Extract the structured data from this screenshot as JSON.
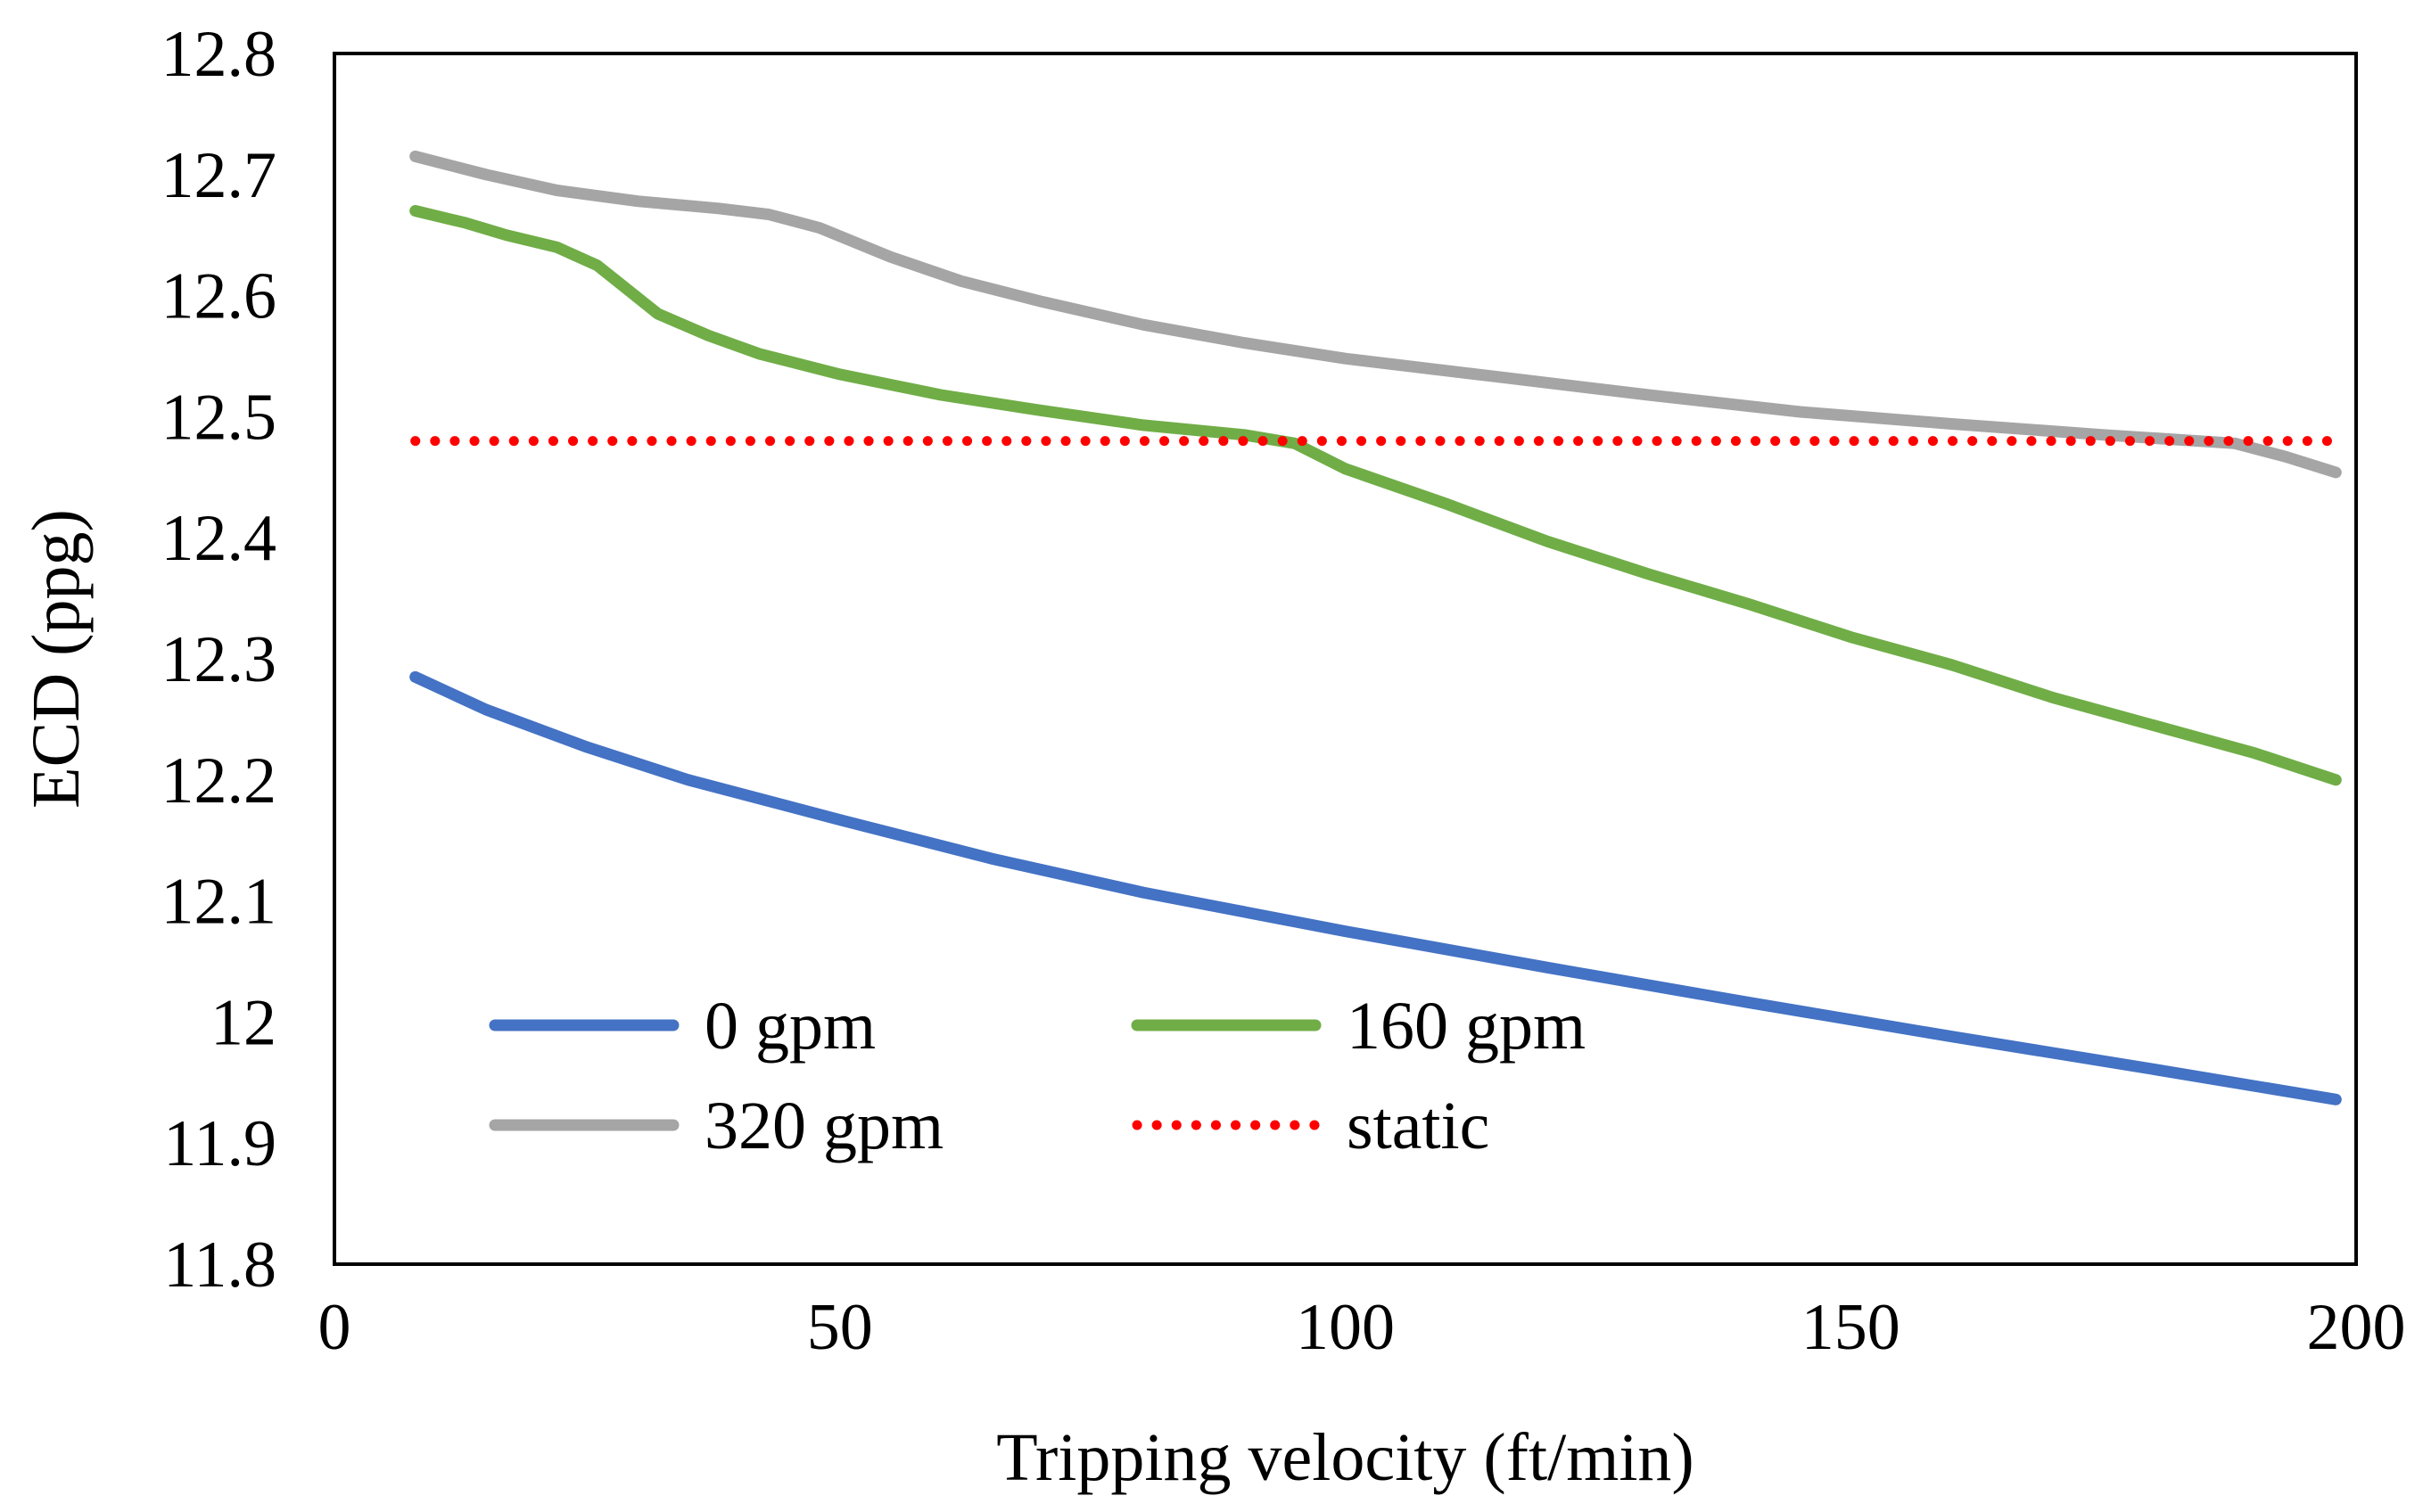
{
  "chart_data": {
    "type": "line",
    "title": "",
    "xlabel": "Tripping velocity (ft/min)",
    "ylabel": "ECD (ppg)",
    "xlim": [
      0,
      200
    ],
    "ylim": [
      11.8,
      12.8
    ],
    "x_ticks": [
      0,
      50,
      100,
      150,
      200
    ],
    "y_ticks": [
      11.8,
      11.9,
      12,
      12.1,
      12.2,
      12.3,
      12.4,
      12.5,
      12.6,
      12.7,
      12.8
    ],
    "x_tick_labels": [
      "0",
      "50",
      "100",
      "150",
      "200"
    ],
    "y_tick_labels": [
      "11.8",
      "11.9",
      "12",
      "12.1",
      "12.2",
      "12.3",
      "12.4",
      "12.5",
      "12.6",
      "12.7",
      "12.8"
    ],
    "grid": false,
    "legend_position": "bottom-left (inside plot area, 2 columns)",
    "series": [
      {
        "name": "0 gpm",
        "color": "#4472C4",
        "style": "solid",
        "points": [
          [
            8,
            12.285
          ],
          [
            15,
            12.258
          ],
          [
            25,
            12.227
          ],
          [
            35,
            12.2
          ],
          [
            50,
            12.167
          ],
          [
            65,
            12.135
          ],
          [
            80,
            12.107
          ],
          [
            100,
            12.075
          ],
          [
            120,
            12.045
          ],
          [
            140,
            12.016
          ],
          [
            160,
            11.988
          ],
          [
            180,
            11.961
          ],
          [
            198,
            11.936
          ]
        ]
      },
      {
        "name": "160 gpm",
        "color": "#70AD47",
        "style": "solid",
        "points": [
          [
            8,
            12.67
          ],
          [
            13,
            12.66
          ],
          [
            17,
            12.65
          ],
          [
            22,
            12.64
          ],
          [
            26,
            12.625
          ],
          [
            29,
            12.605
          ],
          [
            32,
            12.585
          ],
          [
            37,
            12.567
          ],
          [
            42,
            12.552
          ],
          [
            50,
            12.535
          ],
          [
            60,
            12.518
          ],
          [
            70,
            12.505
          ],
          [
            80,
            12.493
          ],
          [
            90,
            12.485
          ],
          [
            95,
            12.478
          ],
          [
            100,
            12.457
          ],
          [
            110,
            12.428
          ],
          [
            120,
            12.397
          ],
          [
            130,
            12.37
          ],
          [
            140,
            12.345
          ],
          [
            150,
            12.318
          ],
          [
            160,
            12.295
          ],
          [
            170,
            12.268
          ],
          [
            180,
            12.245
          ],
          [
            190,
            12.222
          ],
          [
            198,
            12.2
          ]
        ]
      },
      {
        "name": "320 gpm",
        "color": "#A5A5A5",
        "style": "solid",
        "points": [
          [
            8,
            12.715
          ],
          [
            15,
            12.7
          ],
          [
            22,
            12.687
          ],
          [
            30,
            12.678
          ],
          [
            38,
            12.672
          ],
          [
            43,
            12.667
          ],
          [
            48,
            12.656
          ],
          [
            55,
            12.632
          ],
          [
            62,
            12.612
          ],
          [
            70,
            12.595
          ],
          [
            80,
            12.576
          ],
          [
            90,
            12.561
          ],
          [
            100,
            12.548
          ],
          [
            115,
            12.533
          ],
          [
            130,
            12.518
          ],
          [
            145,
            12.504
          ],
          [
            160,
            12.494
          ],
          [
            175,
            12.485
          ],
          [
            188,
            12.478
          ],
          [
            193,
            12.467
          ],
          [
            198,
            12.454
          ]
        ]
      },
      {
        "name": "static",
        "color": "#FF0000",
        "style": "dotted",
        "points": [
          [
            8,
            12.48
          ],
          [
            198,
            12.48
          ]
        ]
      }
    ]
  }
}
